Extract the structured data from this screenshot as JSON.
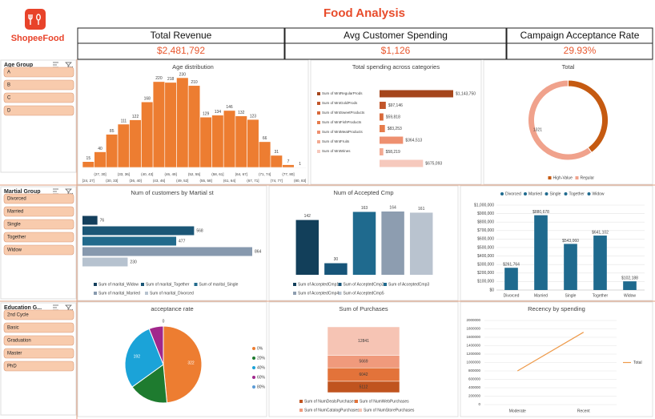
{
  "header": {
    "logo": "ShopeeFood",
    "title": "Food Analysis"
  },
  "kpis": [
    {
      "label": "Total Revenue",
      "value": "$2,481,792"
    },
    {
      "label": "Avg Customer Spending",
      "value": "$1,126"
    },
    {
      "label": "Campaign Acceptance Rate",
      "value": "29.93%"
    }
  ],
  "slicers": [
    {
      "title": "Age Group",
      "items": [
        "A",
        "B",
        "C",
        "D"
      ]
    },
    {
      "title": "Martial Group",
      "items": [
        "Divorced",
        "Married",
        "Single",
        "Together",
        "Widow"
      ]
    },
    {
      "title": "Education G...",
      "items": [
        "2nd Cycle",
        "Basic",
        "Graduation",
        "Master",
        "PhD"
      ]
    }
  ],
  "chart_data": [
    {
      "type": "bar",
      "title": "Age distribution",
      "color": "#ed7d31",
      "categories": [
        "[24, 27]",
        "(27, 30]",
        "(30, 33]",
        "(33, 36]",
        "(36, 40]",
        "(40, 43]",
        "(43, 46]",
        "(46, 49]",
        "(49, 52]",
        "(52, 55]",
        "(55, 58]",
        "(58, 61]",
        "(61, 64]",
        "(64, 67]",
        "(67, 71]",
        "(71, 74]",
        "(74, 77]",
        "(77, 80]",
        "(80, 83]"
      ],
      "values": [
        15,
        40,
        85,
        111,
        122,
        168,
        220,
        218,
        230,
        210,
        129,
        134,
        146,
        132,
        123,
        66,
        31,
        7,
        1
      ]
    },
    {
      "type": "hbar",
      "title": "Total spending across categories",
      "legend": "left",
      "series": [
        {
          "name": "Sum of MntRegularProds",
          "color": "#a5461c",
          "values": [
            1143750
          ],
          "value_labels": [
            "$1,143,750"
          ]
        },
        {
          "name": "Sum of MntGoldProds",
          "color": "#c2562a",
          "values": [
            97146
          ],
          "value_labels": [
            "$97,146"
          ]
        },
        {
          "name": "Sum of MntSweetProducts",
          "color": "#d8693a",
          "values": [
            59818
          ],
          "value_labels": [
            "$59,818"
          ]
        },
        {
          "name": "Sum of MntFishProducts",
          "color": "#e67c4c",
          "values": [
            83253
          ],
          "value_labels": [
            "$83,253"
          ]
        },
        {
          "name": "Sum of MntMeatProducts",
          "color": "#ee9070",
          "values": [
            364513
          ],
          "value_labels": [
            "$364,513"
          ]
        },
        {
          "name": "Sum of MntFruits",
          "color": "#f3aa92",
          "values": [
            58219
          ],
          "value_labels": [
            "$58,219"
          ]
        },
        {
          "name": "Sum of MntWines",
          "color": "#f6c9bd",
          "values": [
            675093
          ],
          "value_labels": [
            "$675,093"
          ]
        }
      ]
    },
    {
      "type": "donut",
      "title": "Total",
      "categories": [
        "High-Value",
        "Regular"
      ],
      "values": [
        880,
        1321
      ],
      "colors": [
        "#c55a11",
        "#f0a28c"
      ],
      "show_labels": [
        false,
        true
      ]
    },
    {
      "type": "hbar",
      "title": "Num of customers by Martial st",
      "legend": "bottom",
      "series": [
        {
          "name": "Sum of marital_Widow",
          "color": "#143f5c",
          "values": [
            76
          ]
        },
        {
          "name": "Sum of marital_Together",
          "color": "#1b5676",
          "values": [
            568
          ]
        },
        {
          "name": "Sum of marital_Single",
          "color": "#226a8c",
          "values": [
            477
          ]
        },
        {
          "name": "Sum of marital_Married",
          "color": "#8799ae",
          "values": [
            864
          ]
        },
        {
          "name": "Sum of marital_Divorced",
          "color": "#b6c2cf",
          "values": [
            230
          ]
        }
      ]
    },
    {
      "type": "column",
      "title": "Num of Accepted Cmp",
      "series": [
        {
          "name": "Sum of AcceptedCmp1",
          "color": "#123f5a",
          "values": [
            142
          ]
        },
        {
          "name": "Sum of AcceptedCmp2",
          "color": "#175579",
          "values": [
            30
          ]
        },
        {
          "name": "Sum of AcceptedCmp3",
          "color": "#1f6a8e",
          "values": [
            163
          ]
        },
        {
          "name": "Sum of AcceptedCmp4",
          "color": "#8d9db0",
          "values": [
            164
          ]
        },
        {
          "name": "Sum of AcceptedCmp5",
          "color": "#b9c3cf",
          "values": [
            161
          ]
        }
      ]
    },
    {
      "type": "bar",
      "legend": "top",
      "grid": true,
      "color": "#1f6a8e",
      "categories": [
        "Divorced",
        "Married",
        "Single",
        "Together",
        "Widow"
      ],
      "values": [
        261764,
        880678,
        543060,
        641102,
        102188
      ],
      "value_labels": [
        "$261,764",
        "$880,678",
        "$543,060",
        "$641,102",
        "$102,188"
      ],
      "ylim": [
        0,
        1000000
      ],
      "yticks": [
        {
          "value": 0,
          "label": "$0"
        },
        {
          "value": 100000,
          "label": "$100,000"
        },
        {
          "value": 200000,
          "label": "$200,000"
        },
        {
          "value": 300000,
          "label": "$300,000"
        },
        {
          "value": 400000,
          "label": "$400,000"
        },
        {
          "value": 500000,
          "label": "$500,000"
        },
        {
          "value": 600000,
          "label": "$600,000"
        },
        {
          "value": 700000,
          "label": "$700,000"
        },
        {
          "value": 800000,
          "label": "$800,000"
        },
        {
          "value": 900000,
          "label": "$900,000"
        },
        {
          "value": 1000000,
          "label": "$1,000,000"
        }
      ]
    },
    {
      "type": "pie",
      "title": "acceptance rate",
      "categories": [
        "0%",
        "20%",
        "40%",
        "60%",
        "80%"
      ],
      "values": [
        322,
        110,
        192,
        40,
        0
      ],
      "colors": [
        "#ed7d31",
        "#1e7b2f",
        "#1ba3d8",
        "#a1278c",
        "#5b9bd5"
      ],
      "show_labels": [
        true,
        false,
        true,
        false,
        true
      ]
    },
    {
      "type": "stacked",
      "title": "Sum of Purchases",
      "series": [
        {
          "name": "Sum of NumDealsPurchases",
          "color": "#c0541f",
          "values": [
            5112
          ]
        },
        {
          "name": "Sum of NumWebPurchases",
          "color": "#e3733a",
          "values": [
            6042
          ]
        },
        {
          "name": "Sum of NumCatalogPurchases",
          "color": "#f09a7c",
          "values": [
            5669
          ]
        },
        {
          "name": "Sum of NumStorePurchases",
          "color": "#f6c4b4",
          "values": [
            12841
          ]
        }
      ]
    },
    {
      "type": "line",
      "title": "Recency by spending",
      "grid": true,
      "legend": "right",
      "categories": [
        "Moderate",
        "Recent"
      ],
      "series": [
        {
          "name": "Total",
          "color": "#ee9a4a",
          "values": [
            800000,
            1720000
          ]
        }
      ],
      "ylim": [
        0,
        2000000
      ],
      "yticks": [
        0,
        200000,
        400000,
        600000,
        800000,
        1000000,
        1200000,
        1400000,
        1600000,
        1800000,
        2000000
      ]
    }
  ]
}
